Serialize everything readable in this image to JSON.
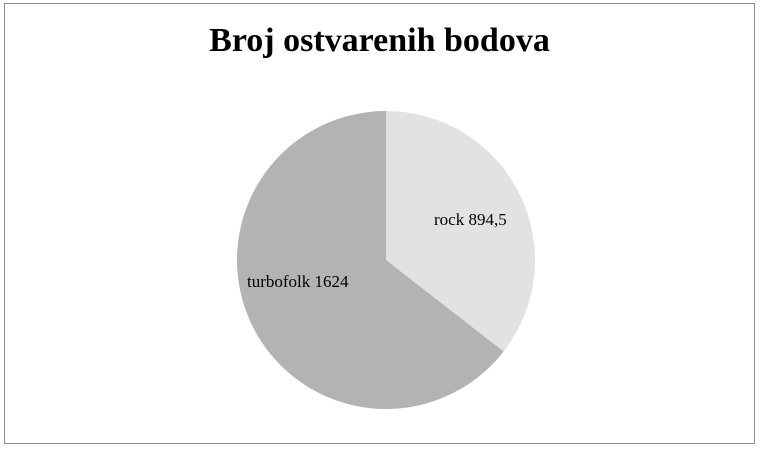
{
  "chart_data": {
    "type": "pie",
    "title": "Broj ostvarenih bodova",
    "slices": [
      {
        "label": "rock 894,5",
        "category": "rock",
        "value": 894.5,
        "color": "#e2e2e2"
      },
      {
        "label": "turbofolk 1624",
        "category": "turbofolk",
        "value": 1624,
        "color": "#b3b3b3"
      }
    ],
    "start_angle": "12 o'clock",
    "direction": "clockwise",
    "legend": "none",
    "data_labels": "inside slices"
  }
}
